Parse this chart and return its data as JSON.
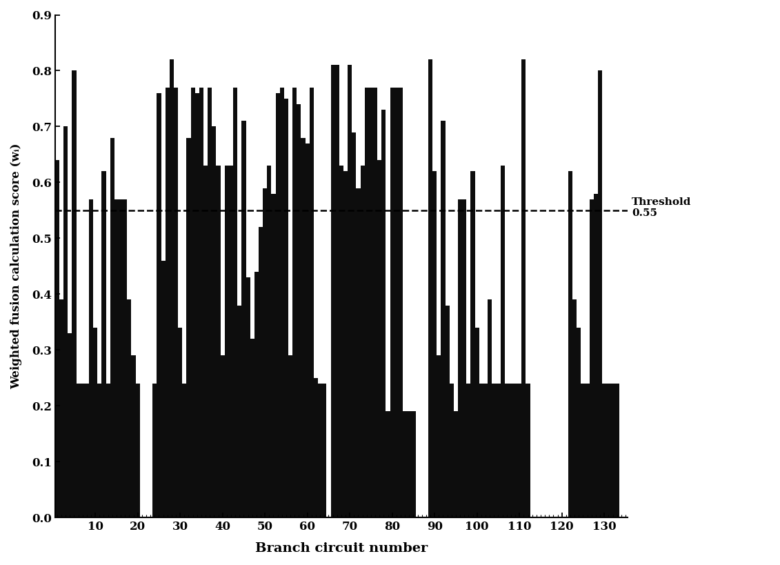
{
  "xlabel": "Branch circuit number",
  "ylabel": "Weighted fusion calculation score (wᵢ)",
  "threshold": 0.55,
  "threshold_label": "Threshold\n0.55",
  "ylim": [
    0.0,
    0.9
  ],
  "xlim": [
    0,
    136
  ],
  "ytick_vals": [
    0.0,
    0.1,
    0.2,
    0.3,
    0.4,
    0.5,
    0.6,
    0.7,
    0.8,
    0.9
  ],
  "ytick_labels": [
    "0.0",
    "0.1",
    "0.2",
    "0.3",
    "0.4",
    "0.5",
    "0.6",
    "0.7",
    "0.8",
    "0.9"
  ],
  "xtick_vals": [
    10,
    20,
    30,
    40,
    50,
    60,
    70,
    80,
    90,
    100,
    110,
    120,
    130
  ],
  "xtick_labels": [
    "10",
    "20",
    "30",
    "40",
    "50",
    "60",
    "70",
    "80",
    "90",
    "100",
    "110",
    "120",
    "130"
  ],
  "bar_color": "#0d0d0d",
  "values": [
    0.64,
    0.39,
    0.7,
    0.33,
    0.8,
    0.24,
    0.24,
    0.24,
    0.57,
    0.34,
    0.24,
    0.62,
    0.24,
    0.68,
    0.57,
    0.57,
    0.57,
    0.39,
    0.29,
    0.24,
    0.0,
    0.0,
    0.0,
    0.24,
    0.76,
    0.46,
    0.77,
    0.82,
    0.77,
    0.34,
    0.24,
    0.68,
    0.77,
    0.76,
    0.77,
    0.63,
    0.77,
    0.7,
    0.63,
    0.29,
    0.63,
    0.63,
    0.77,
    0.38,
    0.71,
    0.43,
    0.32,
    0.44,
    0.52,
    0.59,
    0.63,
    0.58,
    0.76,
    0.77,
    0.75,
    0.29,
    0.77,
    0.74,
    0.68,
    0.67,
    0.77,
    0.25,
    0.24,
    0.24,
    0.0,
    0.81,
    0.81,
    0.63,
    0.62,
    0.81,
    0.69,
    0.59,
    0.63,
    0.77,
    0.77,
    0.77,
    0.64,
    0.73,
    0.19,
    0.77,
    0.77,
    0.77,
    0.19,
    0.19,
    0.19,
    0.0,
    0.0,
    0.0,
    0.82,
    0.62,
    0.29,
    0.71,
    0.38,
    0.24,
    0.19,
    0.57,
    0.57,
    0.24,
    0.62,
    0.34,
    0.24,
    0.24,
    0.39,
    0.24,
    0.24,
    0.63,
    0.24,
    0.24,
    0.24,
    0.24,
    0.82,
    0.24,
    0.0,
    0.0,
    0.0,
    0.0,
    0.0,
    0.0,
    0.0,
    0.0,
    0.0,
    0.62,
    0.39,
    0.34,
    0.24,
    0.24,
    0.57,
    0.58,
    0.8,
    0.24,
    0.24,
    0.24,
    0.24
  ],
  "figsize": [
    11.31,
    8.19
  ],
  "dpi": 100
}
